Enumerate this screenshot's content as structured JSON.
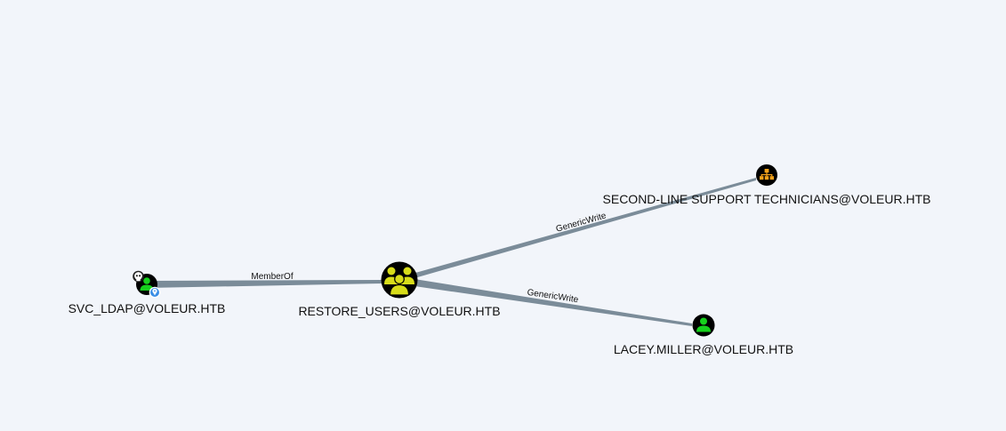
{
  "graph": {
    "nodes": {
      "svc_ldap": {
        "label": "SVC_LDAP@VOLEUR.HTB",
        "type": "user",
        "icon": "user-icon",
        "badges": [
          "skull-icon",
          "location-pin-icon"
        ],
        "colors": {
          "glyph": "#16d11d",
          "ring": "#000000",
          "badge": "#3a8ee6"
        }
      },
      "restore_users": {
        "label": "RESTORE_USERS@VOLEUR.HTB",
        "type": "group",
        "icon": "group-icon",
        "colors": {
          "glyph": "#d7dc1a",
          "ring": "#000000"
        }
      },
      "second_line": {
        "label": "SECOND-LINE SUPPORT TECHNICIANS@VOLEUR.HTB",
        "type": "ou",
        "icon": "org-chart-icon",
        "colors": {
          "glyph": "#f5a21a",
          "ring": "#000000"
        }
      },
      "lacey_miller": {
        "label": "LACEY.MILLER@VOLEUR.HTB",
        "type": "user",
        "icon": "user-icon",
        "colors": {
          "glyph": "#16d11d",
          "ring": "#000000"
        }
      }
    },
    "edges": {
      "member_of": {
        "label": "MemberOf",
        "from": "svc_ldap",
        "to": "restore_users"
      },
      "generic_write_1": {
        "label": "GenericWrite",
        "from": "restore_users",
        "to": "second_line"
      },
      "generic_write_2": {
        "label": "GenericWrite",
        "from": "restore_users",
        "to": "lacey_miller"
      }
    },
    "colors": {
      "background": "#f2f5fa",
      "edge": "#7b8c99"
    }
  }
}
